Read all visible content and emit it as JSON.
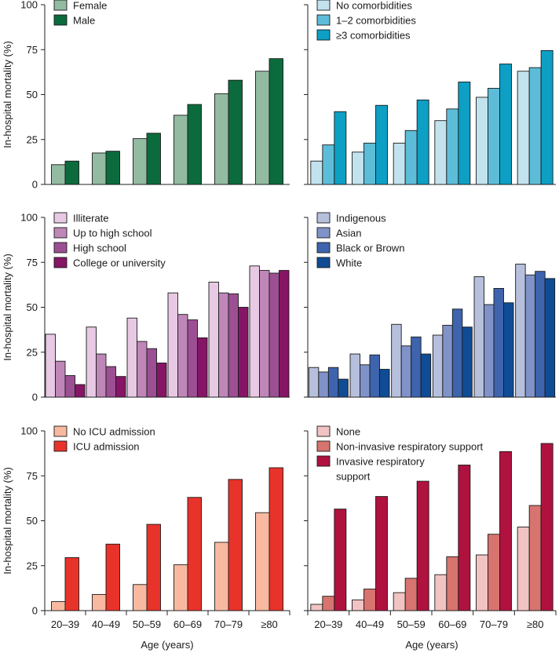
{
  "figure": {
    "ylabel": "In-hospital mortality (%)",
    "xlabel": "Age (years)"
  },
  "chart_data": [
    {
      "type": "bar",
      "id": "sex",
      "categories": [
        "20–39",
        "40–49",
        "50–59",
        "60–69",
        "70–79",
        "≥80"
      ],
      "ylim": [
        0,
        100
      ],
      "yticks": [
        0,
        25,
        50,
        75,
        100
      ],
      "ylabel": "In-hospital mortality (%)",
      "xlabel": "",
      "legend_position": "top-left",
      "series": [
        {
          "name": "Female",
          "color": "#93bba2",
          "values": [
            11,
            17.5,
            25.5,
            38.5,
            50.5,
            63
          ]
        },
        {
          "name": "Male",
          "color": "#0b6b3d",
          "values": [
            13,
            18.5,
            28.5,
            44.5,
            58,
            70
          ]
        }
      ]
    },
    {
      "type": "bar",
      "id": "comorbidities",
      "categories": [
        "20–39",
        "40–49",
        "50–59",
        "60–69",
        "70–79",
        "≥80"
      ],
      "ylim": [
        0,
        100
      ],
      "yticks": [
        0,
        25,
        50,
        75,
        100
      ],
      "ylabel": "",
      "xlabel": "",
      "legend_position": "top-left",
      "series": [
        {
          "name": "No comorbidities",
          "color": "#c2e3ee",
          "values": [
            13,
            18,
            23,
            35.5,
            48.5,
            63
          ]
        },
        {
          "name": "1–2 comorbidities",
          "color": "#5dbdd8",
          "values": [
            22,
            23,
            30,
            42,
            53.5,
            65
          ]
        },
        {
          "name": "≥3 comorbidities",
          "color": "#0d9fc4",
          "values": [
            40.5,
            44,
            47,
            57,
            67,
            74.5
          ]
        }
      ]
    },
    {
      "type": "bar",
      "id": "education",
      "categories": [
        "20–39",
        "40–49",
        "50–59",
        "60–69",
        "70–79",
        "≥80"
      ],
      "ylim": [
        0,
        100
      ],
      "yticks": [
        0,
        25,
        50,
        75,
        100
      ],
      "ylabel": "In-hospital mortality (%)",
      "xlabel": "",
      "legend_position": "top-left",
      "series": [
        {
          "name": "Illiterate",
          "color": "#e7c9e3",
          "values": [
            35,
            39,
            44,
            58,
            64,
            73
          ]
        },
        {
          "name": "Up to high school",
          "color": "#bf86b8",
          "values": [
            20,
            24,
            31,
            46,
            58,
            70.5
          ]
        },
        {
          "name": "High school",
          "color": "#9c4f93",
          "values": [
            12,
            17,
            27,
            43,
            57.5,
            69
          ]
        },
        {
          "name": "College or university",
          "color": "#861566",
          "values": [
            7,
            11.5,
            19,
            33,
            50,
            70.5
          ]
        }
      ]
    },
    {
      "type": "bar",
      "id": "ethnicity",
      "categories": [
        "20–39",
        "40–49",
        "50–59",
        "60–69",
        "70–79",
        "≥80"
      ],
      "ylim": [
        0,
        100
      ],
      "yticks": [
        0,
        25,
        50,
        75,
        100
      ],
      "ylabel": "",
      "xlabel": "",
      "legend_position": "top-left",
      "series": [
        {
          "name": "Indigenous",
          "color": "#b6c0dc",
          "values": [
            16.5,
            24,
            40.5,
            34.5,
            67,
            74
          ]
        },
        {
          "name": "Asian",
          "color": "#7f93c8",
          "values": [
            14,
            18,
            28.5,
            40,
            51.5,
            68
          ]
        },
        {
          "name": "Black or Brown",
          "color": "#3d64ad",
          "values": [
            16.5,
            23.5,
            33.5,
            49,
            60.5,
            70
          ]
        },
        {
          "name": "White",
          "color": "#0f4c95",
          "values": [
            10,
            15.5,
            24,
            39,
            52.5,
            66
          ]
        }
      ]
    },
    {
      "type": "bar",
      "id": "icu",
      "categories": [
        "20–39",
        "40–49",
        "50–59",
        "60–69",
        "70–79",
        "≥80"
      ],
      "ylim": [
        0,
        100
      ],
      "yticks": [
        0,
        25,
        50,
        75,
        100
      ],
      "ylabel": "In-hospital mortality (%)",
      "xlabel": "Age (years)",
      "legend_position": "top-left",
      "series": [
        {
          "name": "No ICU admission",
          "color": "#f9b9a1",
          "values": [
            5,
            9,
            14.5,
            25.5,
            38,
            54.5
          ]
        },
        {
          "name": "ICU admission",
          "color": "#e8332a",
          "values": [
            29.5,
            37,
            48,
            63,
            73,
            79.5
          ]
        }
      ]
    },
    {
      "type": "bar",
      "id": "respiratory",
      "categories": [
        "20–39",
        "40–49",
        "50–59",
        "60–69",
        "70–79",
        "≥80"
      ],
      "ylim": [
        0,
        100
      ],
      "yticks": [
        0,
        25,
        50,
        75,
        100
      ],
      "ylabel": "",
      "xlabel": "Age (years)",
      "legend_position": "top-left",
      "series": [
        {
          "name": "None",
          "color": "#f2c3c3",
          "values": [
            3.5,
            6,
            10,
            20,
            31,
            46.5
          ]
        },
        {
          "name": "Non-invasive respiratory support",
          "color": "#d7746f",
          "values": [
            8,
            12,
            18,
            30,
            42.5,
            58.5
          ]
        },
        {
          "name": "Invasive respiratory support",
          "color": "#b0123f",
          "values": [
            56.5,
            63.5,
            72,
            81,
            88.5,
            93
          ]
        }
      ]
    }
  ]
}
